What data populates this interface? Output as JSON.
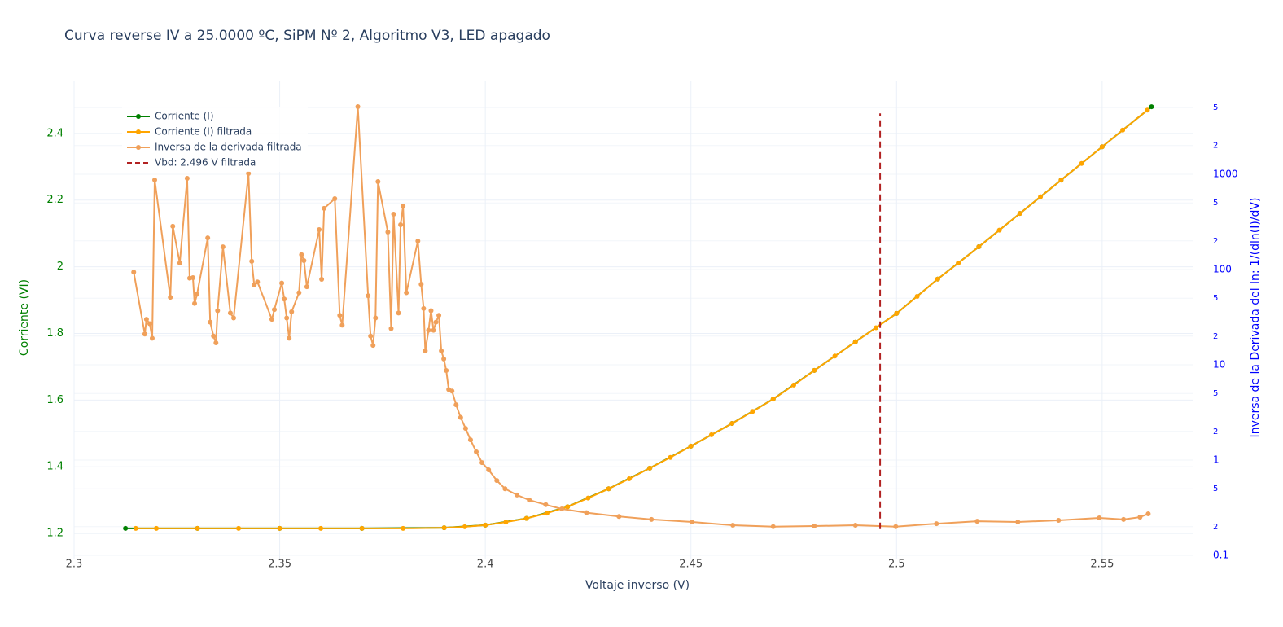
{
  "chart_data": {
    "type": "line",
    "title": "Curva reverse IV a 25.0000 ºC, SiPM Nº 2, Algoritmo V3, LED apagado",
    "x_label": "Voltaje inverso (V)",
    "y_label": "Corriente (VI)",
    "y2_label": "Inversa de la Derivada del ln: 1/(dln(I)/dV)",
    "xlim": [
      2.3,
      2.572
    ],
    "xticks": [
      2.3,
      2.35,
      2.4,
      2.45,
      2.5,
      2.55
    ],
    "ylim": [
      1.122,
      2.556
    ],
    "yticks": [
      1.2,
      1.4,
      1.6,
      1.8,
      2,
      2.2,
      2.4
    ],
    "y2lim": [
      0.0906,
      9420
    ],
    "y2log": true,
    "y2ticks": [
      0.1,
      {
        "value": 0.2,
        "label": "2"
      },
      {
        "value": 0.5,
        "label": "5"
      },
      1,
      {
        "value": 2,
        "label": "2"
      },
      {
        "value": 5,
        "label": "5"
      },
      10,
      {
        "value": 20,
        "label": "2"
      },
      {
        "value": 50,
        "label": "5"
      },
      100,
      {
        "value": 200,
        "label": "2"
      },
      {
        "value": 500,
        "label": "5"
      },
      1000,
      {
        "value": 2000,
        "label": "2"
      },
      {
        "value": 5000,
        "label": "5"
      }
    ],
    "grid": true,
    "legend": "top-left",
    "series": [
      {
        "name": "Corriente (I)",
        "color": "green",
        "markers": true,
        "x": [
          2.3125,
          2.33,
          2.35,
          2.37,
          2.39,
          2.4,
          2.41,
          2.42,
          2.43,
          2.44,
          2.45,
          2.46,
          2.47,
          2.48,
          2.49,
          2.5,
          2.51,
          2.52,
          2.53,
          2.54,
          2.55,
          2.562
        ],
        "values": [
          1.215,
          1.215,
          1.215,
          1.215,
          1.217,
          1.225,
          1.245,
          1.28,
          1.334,
          1.396,
          1.462,
          1.53,
          1.603,
          1.689,
          1.775,
          1.86,
          1.963,
          2.06,
          2.16,
          2.26,
          2.36,
          2.48
        ]
      },
      {
        "name": "Corriente (I) filtrada",
        "color": "#ffa500",
        "markers": true,
        "x": [
          2.315,
          2.32,
          2.33,
          2.34,
          2.35,
          2.36,
          2.37,
          2.38,
          2.39,
          2.395,
          2.4,
          2.405,
          2.41,
          2.415,
          2.42,
          2.425,
          2.43,
          2.435,
          2.44,
          2.445,
          2.45,
          2.455,
          2.46,
          2.465,
          2.47,
          2.475,
          2.48,
          2.485,
          2.49,
          2.495,
          2.5,
          2.505,
          2.51,
          2.515,
          2.52,
          2.525,
          2.53,
          2.535,
          2.54,
          2.545,
          2.55,
          2.555,
          2.561
        ],
        "values": [
          1.215,
          1.215,
          1.215,
          1.215,
          1.215,
          1.215,
          1.215,
          1.215,
          1.217,
          1.22,
          1.225,
          1.234,
          1.245,
          1.261,
          1.28,
          1.306,
          1.334,
          1.364,
          1.396,
          1.428,
          1.462,
          1.496,
          1.53,
          1.566,
          1.603,
          1.645,
          1.689,
          1.732,
          1.775,
          1.817,
          1.86,
          1.911,
          1.963,
          2.011,
          2.06,
          2.11,
          2.16,
          2.21,
          2.26,
          2.31,
          2.36,
          2.41,
          2.47
        ]
      },
      {
        "name": "Inversa de la derivada filtrada",
        "color": "#f0a05a",
        "markers": true,
        "axis": "y2",
        "x": [
          2.3145,
          2.3172,
          2.3176,
          2.3184,
          2.319,
          2.3196,
          2.3234,
          2.324,
          2.3257,
          2.3275,
          2.3281,
          2.3289,
          2.3293,
          2.3299,
          2.3325,
          2.3331,
          2.3339,
          2.3345,
          2.3349,
          2.3362,
          2.338,
          2.3388,
          2.3424,
          2.3432,
          2.3438,
          2.3446,
          2.3481,
          2.3487,
          2.3505,
          2.3511,
          2.3517,
          2.3523,
          2.3529,
          2.3547,
          2.3553,
          2.3559,
          2.3566,
          2.3596,
          2.3602,
          2.3608,
          2.3634,
          2.3646,
          2.3652,
          2.369,
          2.3715,
          2.3721,
          2.3727,
          2.3733,
          2.3739,
          2.3763,
          2.3771,
          2.3777,
          2.3789,
          2.3794,
          2.38,
          2.3808,
          2.3836,
          2.3844,
          2.385,
          2.3854,
          2.3862,
          2.3868,
          2.3874,
          2.388,
          2.3887,
          2.3893,
          2.3899,
          2.3905,
          2.3911,
          2.3919,
          2.3929,
          2.394,
          2.3952,
          2.3964,
          2.3978,
          2.3992,
          2.4008,
          2.4028,
          2.4048,
          2.4077,
          2.4107,
          2.4147,
          2.4186,
          2.4246,
          2.4325,
          2.4404,
          2.4503,
          2.4602,
          2.47,
          2.48,
          2.49,
          2.4998,
          2.5097,
          2.5196,
          2.5295,
          2.5394,
          2.5493,
          2.5552,
          2.5592,
          2.5612
        ],
        "values": [
          94,
          21,
          30,
          27,
          19,
          871,
          51,
          284,
          117,
          906,
          81,
          82,
          44,
          55,
          215,
          28,
          20,
          17,
          37,
          173,
          35,
          31,
          1020,
          122,
          69,
          74,
          30,
          38,
          72,
          49,
          31,
          19,
          36,
          57,
          143,
          124,
          66,
          262,
          79,
          438,
          554,
          33,
          26,
          5116,
          53,
          20,
          16,
          31,
          837,
          247,
          24,
          381,
          35,
          295,
          464,
          57,
          199,
          70,
          39,
          14,
          23,
          37,
          23,
          28,
          33,
          14,
          11.5,
          8.7,
          5.5,
          5.3,
          3.8,
          2.8,
          2.15,
          1.63,
          1.22,
          0.94,
          0.79,
          0.61,
          0.5,
          0.43,
          0.38,
          0.34,
          0.307,
          0.28,
          0.256,
          0.238,
          0.224,
          0.207,
          0.2,
          0.203,
          0.207,
          0.2,
          0.215,
          0.228,
          0.224,
          0.233,
          0.247,
          0.238,
          0.252,
          0.273
        ]
      },
      {
        "name": "Vbd: 2.496 V filtrada",
        "color": "#b22222",
        "markers": false,
        "dash": true,
        "x": [
          2.496,
          2.496
        ],
        "values": [
          1.213,
          2.46
        ]
      }
    ]
  }
}
